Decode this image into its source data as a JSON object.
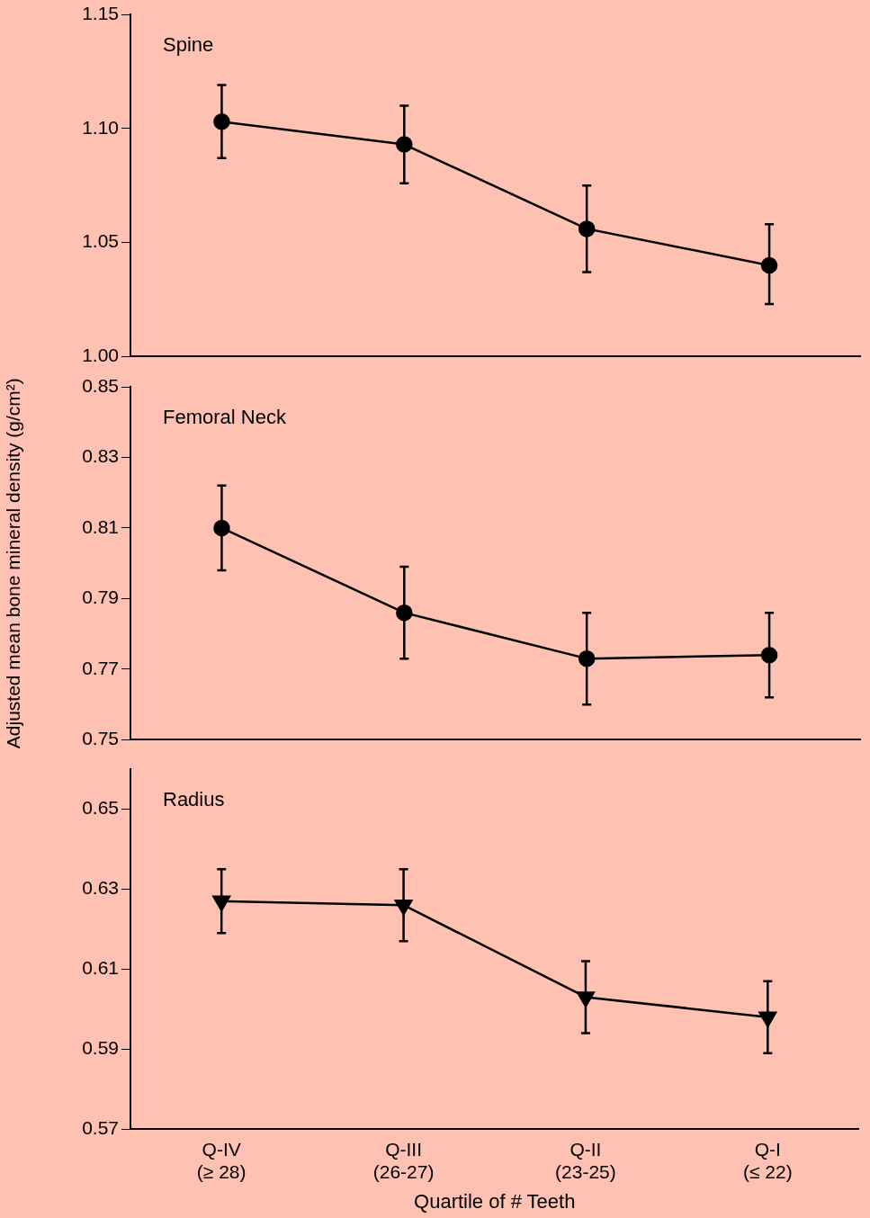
{
  "chart_data": [
    {
      "type": "line",
      "annotations": [
        "Spine"
      ],
      "ylim": [
        1.0,
        1.15
      ],
      "yticks": [
        {
          "value": 1.0,
          "label": "1.00"
        },
        1.05,
        {
          "value": 1.1,
          "label": "1.10"
        },
        1.15
      ],
      "tick_labels": "y",
      "marker": "circle",
      "series": [
        {
          "color": "#000000",
          "values": [
            1.103,
            1.093,
            1.056,
            1.04
          ],
          "errors": [
            [
              1.087,
              1.119
            ],
            [
              1.076,
              1.11
            ],
            [
              1.037,
              1.075
            ],
            [
              1.023,
              1.058
            ]
          ]
        }
      ]
    },
    {
      "type": "line",
      "annotations": [
        "Femoral Neck"
      ],
      "ylabel": "Adjusted mean bone mineral density (g/cm²)",
      "ylim": [
        0.75,
        0.85
      ],
      "yticks": [
        0.75,
        0.77,
        0.79,
        0.81,
        0.83,
        0.85
      ],
      "tick_labels": "y",
      "marker": "circle",
      "series": [
        {
          "color": "#000000",
          "values": [
            0.81,
            0.786,
            0.773,
            0.774
          ],
          "errors": [
            [
              0.798,
              0.822
            ],
            [
              0.773,
              0.799
            ],
            [
              0.76,
              0.786
            ],
            [
              0.762,
              0.786
            ]
          ]
        }
      ]
    },
    {
      "type": "line",
      "categories": [
        "Q-IV (≥ 28)",
        "Q-III (26-27)",
        "Q-II (23-25)",
        "Q-I (≤ 22)"
      ],
      "annotations": [
        "Radius"
      ],
      "xlabel": "Quartile of # Teeth",
      "ylim": [
        0.57,
        0.66
      ],
      "yticks": [
        0.57,
        0.59,
        0.61,
        0.63,
        0.65
      ],
      "marker": "triangle",
      "series": [
        {
          "color": "#000000",
          "values": [
            0.627,
            0.626,
            0.603,
            0.598
          ],
          "errors": [
            [
              0.619,
              0.635
            ],
            [
              0.617,
              0.635
            ],
            [
              0.594,
              0.612
            ],
            [
              0.589,
              0.607
            ]
          ]
        }
      ]
    }
  ]
}
